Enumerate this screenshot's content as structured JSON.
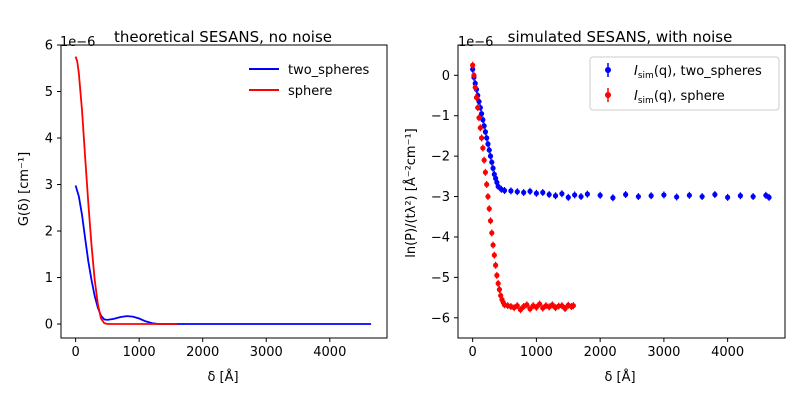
{
  "chart_data": [
    {
      "type": "line",
      "title": "theoretical SESANS, no noise",
      "xlabel": "δ [Å]",
      "ylabel": "G(δ) [cm⁻¹]",
      "y_offset_label": "1e−6",
      "xlim": [
        -230,
        4900
      ],
      "ylim": [
        -0.3,
        6.0
      ],
      "x_ticks": [
        0,
        1000,
        2000,
        3000,
        4000
      ],
      "x_tick_labels": [
        "0",
        "1000",
        "2000",
        "3000",
        "4000"
      ],
      "y_ticks": [
        0,
        1,
        2,
        3,
        4,
        5,
        6
      ],
      "y_tick_labels": [
        "0",
        "1",
        "2",
        "3",
        "4",
        "5",
        "6"
      ],
      "grid": false,
      "legend": "top-right",
      "series": [
        {
          "name": "two_spheres",
          "color": "#0000ff",
          "x": [
            0,
            50,
            100,
            150,
            200,
            250,
            300,
            350,
            400,
            450,
            500,
            600,
            700,
            800,
            900,
            1000,
            1100,
            1200,
            1300,
            1500,
            2000,
            3000,
            4000,
            4650
          ],
          "y": [
            2.98,
            2.75,
            2.35,
            1.85,
            1.35,
            0.95,
            0.6,
            0.35,
            0.18,
            0.1,
            0.09,
            0.11,
            0.15,
            0.17,
            0.16,
            0.12,
            0.06,
            0.02,
            0.0,
            0.0,
            0.0,
            0.0,
            0.0,
            0.0
          ]
        },
        {
          "name": "sphere",
          "color": "#ff0000",
          "x": [
            0,
            25,
            50,
            100,
            150,
            200,
            250,
            300,
            350,
            400,
            450,
            500,
            700,
            1000,
            1300,
            1600
          ],
          "y": [
            5.75,
            5.65,
            5.4,
            4.6,
            3.6,
            2.6,
            1.7,
            0.95,
            0.42,
            0.12,
            0.02,
            0.0,
            0.0,
            0.0,
            0.0,
            0.0
          ]
        }
      ]
    },
    {
      "type": "scatter",
      "title": "simulated SESANS, with noise",
      "xlabel": "δ [Å]",
      "ylabel": "ln(P)/(tλ²) [Å⁻²cm⁻¹]",
      "y_offset_label": "1e−6",
      "xlim": [
        -230,
        4900
      ],
      "ylim": [
        -6.5,
        0.75
      ],
      "x_ticks": [
        0,
        1000,
        2000,
        3000,
        4000
      ],
      "x_tick_labels": [
        "0",
        "1000",
        "2000",
        "3000",
        "4000"
      ],
      "y_ticks": [
        0,
        -1,
        -2,
        -3,
        -4,
        -5,
        -6
      ],
      "y_tick_labels": [
        "0",
        "−1",
        "−2",
        "−3",
        "−4",
        "−5",
        "−6"
      ],
      "grid": false,
      "legend": "top-right",
      "series": [
        {
          "name": "I_sim(q), two_spheres",
          "legend_base": "I",
          "legend_sub": "sim",
          "legend_rest": "(q), two_spheres",
          "color": "#0000ff",
          "x": [
            0,
            20,
            40,
            60,
            80,
            100,
            120,
            140,
            160,
            180,
            200,
            220,
            240,
            260,
            280,
            300,
            320,
            340,
            360,
            380,
            400,
            450,
            500,
            600,
            700,
            800,
            900,
            1000,
            1100,
            1200,
            1300,
            1400,
            1500,
            1600,
            1700,
            1800,
            2000,
            2200,
            2400,
            2600,
            2800,
            3000,
            3200,
            3400,
            3600,
            3800,
            4000,
            4200,
            4400,
            4600,
            4650
          ],
          "y": [
            0.15,
            -0.05,
            -0.2,
            -0.35,
            -0.5,
            -0.65,
            -0.8,
            -0.95,
            -1.1,
            -1.25,
            -1.4,
            -1.55,
            -1.7,
            -1.85,
            -2.0,
            -2.15,
            -2.3,
            -2.45,
            -2.55,
            -2.65,
            -2.75,
            -2.82,
            -2.85,
            -2.86,
            -2.88,
            -2.9,
            -2.87,
            -2.92,
            -2.9,
            -2.95,
            -2.98,
            -2.93,
            -3.02,
            -2.96,
            -3.0,
            -2.94,
            -2.97,
            -3.03,
            -2.95,
            -3.0,
            -2.98,
            -2.96,
            -3.01,
            -2.97,
            -3.0,
            -2.95,
            -3.02,
            -2.98,
            -3.0,
            -2.97,
            -3.02
          ]
        },
        {
          "name": "I_sim(q), sphere",
          "legend_base": "I",
          "legend_sub": "sim",
          "legend_rest": "(q), sphere",
          "color": "#ff0000",
          "x": [
            0,
            20,
            40,
            60,
            80,
            100,
            120,
            140,
            160,
            180,
            200,
            220,
            240,
            260,
            280,
            300,
            320,
            340,
            360,
            380,
            400,
            420,
            440,
            460,
            480,
            500,
            550,
            600,
            650,
            700,
            750,
            800,
            850,
            900,
            950,
            1000,
            1050,
            1100,
            1150,
            1200,
            1250,
            1300,
            1350,
            1400,
            1450,
            1500,
            1550,
            1580
          ],
          "y": [
            0.25,
            0.0,
            -0.3,
            -0.55,
            -0.8,
            -1.05,
            -1.3,
            -1.55,
            -1.8,
            -2.1,
            -2.4,
            -2.7,
            -3.0,
            -3.3,
            -3.6,
            -3.9,
            -4.2,
            -4.45,
            -4.7,
            -4.95,
            -5.15,
            -5.3,
            -5.45,
            -5.55,
            -5.62,
            -5.68,
            -5.7,
            -5.72,
            -5.75,
            -5.7,
            -5.8,
            -5.72,
            -5.68,
            -5.78,
            -5.7,
            -5.74,
            -5.66,
            -5.76,
            -5.7,
            -5.73,
            -5.68,
            -5.75,
            -5.71,
            -5.7,
            -5.77,
            -5.69,
            -5.72,
            -5.7
          ]
        }
      ]
    }
  ]
}
